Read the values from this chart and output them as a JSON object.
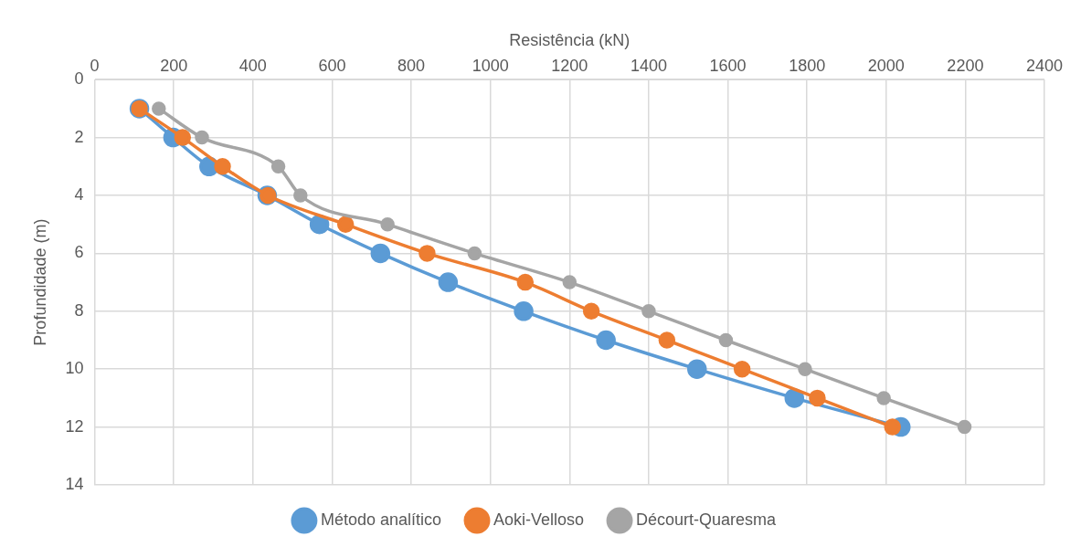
{
  "chart_data": {
    "type": "line",
    "xlabel": "Resistência (kN)",
    "ylabel": "Profundidade (m)",
    "xlim": [
      0,
      2400
    ],
    "xticks": [
      0,
      200,
      400,
      600,
      800,
      1000,
      1200,
      1400,
      1600,
      1800,
      2000,
      2200,
      2400
    ],
    "ylim": [
      14,
      0
    ],
    "yticks": [
      0,
      2,
      4,
      6,
      8,
      10,
      12,
      14
    ],
    "grid": true,
    "legend": "bottom",
    "marker": "circle",
    "line_style": "solid",
    "series": [
      {
        "name": "Método analítico",
        "color": "#5b9bd5",
        "x": [
          113,
          198,
          289,
          436,
          568,
          722,
          893,
          1084,
          1292,
          1522,
          1768,
          2037
        ],
        "values": [
          1,
          2,
          3,
          4,
          5,
          6,
          7,
          8,
          9,
          10,
          11,
          12
        ]
      },
      {
        "name": "Aoki-Velloso",
        "color": "#ed7d31",
        "x": [
          113,
          222,
          323,
          438,
          634,
          840,
          1088,
          1255,
          1446,
          1636,
          1826,
          2016
        ],
        "values": [
          1,
          2,
          3,
          4,
          5,
          6,
          7,
          8,
          9,
          10,
          11,
          12
        ]
      },
      {
        "name": "Décourt-Quaresma",
        "color": "#a5a5a5",
        "x": [
          162,
          271,
          464,
          520,
          740,
          960,
          1200,
          1400,
          1595,
          1795,
          1994,
          2198
        ],
        "values": [
          1,
          2,
          3,
          4,
          5,
          6,
          7,
          8,
          9,
          10,
          11,
          12
        ]
      }
    ]
  }
}
